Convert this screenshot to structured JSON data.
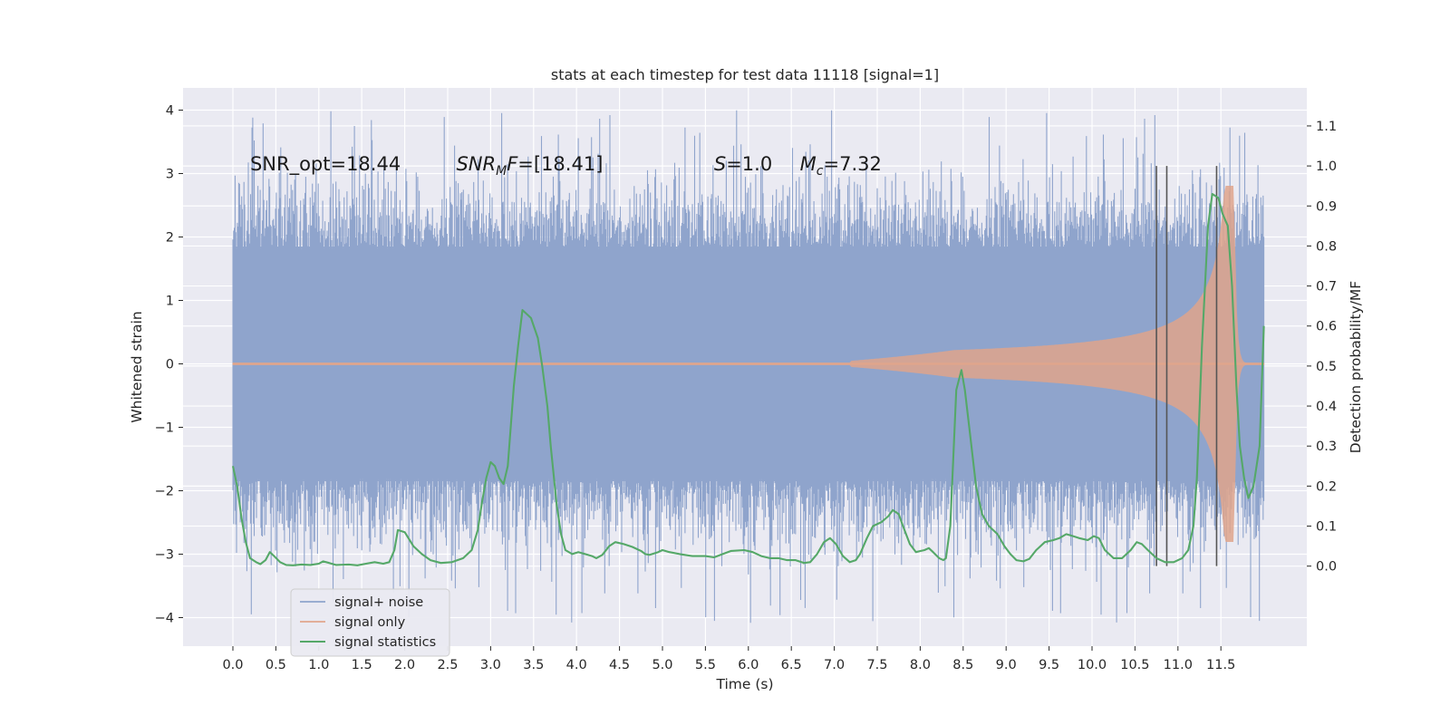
{
  "chart_data": {
    "type": "line",
    "title": "stats at each timestep for test data 11118 [signal=1]",
    "xlabel": "Time (s)",
    "ylabel": "Whitened strain",
    "y2label": "Detection probability/MF",
    "xlim": [
      -0.58,
      12.5
    ],
    "ylim": [
      -4.45,
      4.35
    ],
    "y2lim": [
      -0.2,
      1.195
    ],
    "xticks": [
      0.0,
      0.5,
      1.0,
      1.5,
      2.0,
      2.5,
      3.0,
      3.5,
      4.0,
      4.5,
      5.0,
      5.5,
      6.0,
      6.5,
      7.0,
      7.5,
      8.0,
      8.5,
      9.0,
      9.5,
      10.0,
      10.5,
      11.0,
      11.5
    ],
    "xtick_labels": [
      "0.0",
      "0.5",
      "1.0",
      "1.5",
      "2.0",
      "2.5",
      "3.0",
      "3.5",
      "4.0",
      "4.5",
      "5.0",
      "5.5",
      "6.0",
      "6.5",
      "7.0",
      "7.5",
      "8.0",
      "8.5",
      "9.0",
      "9.5",
      "10.0",
      "10.5",
      "11.0",
      "11.5"
    ],
    "yticks": [
      -4,
      -3,
      -2,
      -1,
      0,
      1,
      2,
      3,
      4
    ],
    "ytick_labels": [
      "−4",
      "−3",
      "−2",
      "−1",
      "0",
      "1",
      "2",
      "3",
      "4"
    ],
    "y2ticks": [
      0.0,
      0.1,
      0.2,
      0.3,
      0.4,
      0.5,
      0.6,
      0.7,
      0.8,
      0.9,
      1.0,
      1.1
    ],
    "y2tick_labels": [
      "0.0",
      "0.1",
      "0.2",
      "0.3",
      "0.4",
      "0.5",
      "0.6",
      "0.7",
      "0.8",
      "0.9",
      "1.0",
      "1.1"
    ],
    "grid": true,
    "legend_position": "lower-left",
    "annotations": [
      {
        "pre": "SNR_opt=18.44",
        "x": 0.2,
        "y": 3.15
      },
      {
        "pre": "SNR",
        "sub": "M",
        "post": "F=[18.41]",
        "italic": true,
        "x": 2.6,
        "y": 3.15
      },
      {
        "pre": "S",
        "post": "=1.0",
        "italic_pre": true,
        "x": 5.6,
        "y": 3.15
      },
      {
        "pre": "M",
        "sub": "c",
        "post": "=7.32",
        "italic_pre": true,
        "x": 6.6,
        "y": 3.15
      }
    ],
    "vlines": {
      "x": [
        10.75,
        10.87,
        11.45
      ],
      "y2_from": 0.0,
      "y2_to": 1.0,
      "color": "#555555"
    },
    "series": [
      {
        "name": "signal+ noise",
        "color": "#8fa4cc",
        "kind": "noise",
        "x_start": 0.0,
        "x_end": 12.0,
        "band_sigma": 1.0,
        "spike_max": 4.0,
        "spike_min": -4.1
      },
      {
        "name": "signal only",
        "color": "#e0a58c",
        "kind": "chirp",
        "x_start": 0.0,
        "x_end": 12.0,
        "onset": 7.2,
        "merger": 11.65,
        "amp_at_10": 0.35,
        "peak_amp": 2.8
      },
      {
        "name": "signal statistics",
        "color": "#55a868",
        "kind": "line",
        "axis": "y2",
        "points": [
          [
            0.0,
            0.25
          ],
          [
            0.05,
            0.2
          ],
          [
            0.1,
            0.12
          ],
          [
            0.15,
            0.06
          ],
          [
            0.2,
            0.02
          ],
          [
            0.27,
            0.01
          ],
          [
            0.32,
            0.005
          ],
          [
            0.38,
            0.015
          ],
          [
            0.43,
            0.035
          ],
          [
            0.48,
            0.025
          ],
          [
            0.55,
            0.01
          ],
          [
            0.62,
            0.003
          ],
          [
            0.7,
            0.002
          ],
          [
            0.8,
            0.004
          ],
          [
            0.9,
            0.003
          ],
          [
            1.0,
            0.006
          ],
          [
            1.05,
            0.012
          ],
          [
            1.12,
            0.008
          ],
          [
            1.2,
            0.003
          ],
          [
            1.35,
            0.004
          ],
          [
            1.45,
            0.002
          ],
          [
            1.55,
            0.006
          ],
          [
            1.65,
            0.01
          ],
          [
            1.75,
            0.006
          ],
          [
            1.82,
            0.01
          ],
          [
            1.88,
            0.04
          ],
          [
            1.92,
            0.09
          ],
          [
            2.0,
            0.085
          ],
          [
            2.1,
            0.05
          ],
          [
            2.2,
            0.03
          ],
          [
            2.3,
            0.015
          ],
          [
            2.42,
            0.008
          ],
          [
            2.55,
            0.01
          ],
          [
            2.68,
            0.02
          ],
          [
            2.78,
            0.04
          ],
          [
            2.85,
            0.09
          ],
          [
            2.9,
            0.16
          ],
          [
            2.95,
            0.22
          ],
          [
            3.0,
            0.26
          ],
          [
            3.05,
            0.25
          ],
          [
            3.1,
            0.22
          ],
          [
            3.15,
            0.205
          ],
          [
            3.2,
            0.25
          ],
          [
            3.27,
            0.45
          ],
          [
            3.32,
            0.55
          ],
          [
            3.37,
            0.64
          ],
          [
            3.42,
            0.63
          ],
          [
            3.47,
            0.62
          ],
          [
            3.55,
            0.57
          ],
          [
            3.6,
            0.5
          ],
          [
            3.66,
            0.4
          ],
          [
            3.7,
            0.3
          ],
          [
            3.77,
            0.15
          ],
          [
            3.82,
            0.08
          ],
          [
            3.87,
            0.04
          ],
          [
            3.95,
            0.03
          ],
          [
            4.02,
            0.035
          ],
          [
            4.1,
            0.03
          ],
          [
            4.18,
            0.025
          ],
          [
            4.23,
            0.02
          ],
          [
            4.3,
            0.028
          ],
          [
            4.38,
            0.05
          ],
          [
            4.45,
            0.06
          ],
          [
            4.55,
            0.055
          ],
          [
            4.65,
            0.048
          ],
          [
            4.75,
            0.038
          ],
          [
            4.8,
            0.03
          ],
          [
            4.85,
            0.028
          ],
          [
            4.95,
            0.035
          ],
          [
            5.0,
            0.04
          ],
          [
            5.08,
            0.035
          ],
          [
            5.2,
            0.03
          ],
          [
            5.35,
            0.025
          ],
          [
            5.5,
            0.025
          ],
          [
            5.6,
            0.022
          ],
          [
            5.7,
            0.03
          ],
          [
            5.8,
            0.038
          ],
          [
            5.95,
            0.04
          ],
          [
            6.05,
            0.035
          ],
          [
            6.15,
            0.025
          ],
          [
            6.25,
            0.02
          ],
          [
            6.35,
            0.02
          ],
          [
            6.45,
            0.015
          ],
          [
            6.55,
            0.015
          ],
          [
            6.65,
            0.008
          ],
          [
            6.72,
            0.01
          ],
          [
            6.8,
            0.03
          ],
          [
            6.88,
            0.06
          ],
          [
            6.95,
            0.07
          ],
          [
            7.02,
            0.055
          ],
          [
            7.1,
            0.025
          ],
          [
            7.18,
            0.01
          ],
          [
            7.25,
            0.015
          ],
          [
            7.3,
            0.03
          ],
          [
            7.38,
            0.07
          ],
          [
            7.45,
            0.1
          ],
          [
            7.55,
            0.11
          ],
          [
            7.63,
            0.125
          ],
          [
            7.68,
            0.14
          ],
          [
            7.75,
            0.13
          ],
          [
            7.8,
            0.1
          ],
          [
            7.88,
            0.055
          ],
          [
            7.95,
            0.035
          ],
          [
            8.05,
            0.04
          ],
          [
            8.1,
            0.045
          ],
          [
            8.15,
            0.035
          ],
          [
            8.22,
            0.02
          ],
          [
            8.27,
            0.015
          ],
          [
            8.3,
            0.02
          ],
          [
            8.35,
            0.1
          ],
          [
            8.42,
            0.44
          ],
          [
            8.48,
            0.49
          ],
          [
            8.52,
            0.44
          ],
          [
            8.58,
            0.33
          ],
          [
            8.65,
            0.2
          ],
          [
            8.72,
            0.13
          ],
          [
            8.8,
            0.1
          ],
          [
            8.9,
            0.08
          ],
          [
            8.98,
            0.05
          ],
          [
            9.05,
            0.03
          ],
          [
            9.12,
            0.015
          ],
          [
            9.2,
            0.012
          ],
          [
            9.27,
            0.018
          ],
          [
            9.35,
            0.04
          ],
          [
            9.45,
            0.06
          ],
          [
            9.55,
            0.065
          ],
          [
            9.62,
            0.07
          ],
          [
            9.7,
            0.08
          ],
          [
            9.78,
            0.075
          ],
          [
            9.85,
            0.07
          ],
          [
            9.95,
            0.065
          ],
          [
            10.02,
            0.075
          ],
          [
            10.08,
            0.07
          ],
          [
            10.15,
            0.04
          ],
          [
            10.25,
            0.02
          ],
          [
            10.35,
            0.02
          ],
          [
            10.45,
            0.04
          ],
          [
            10.52,
            0.06
          ],
          [
            10.58,
            0.055
          ],
          [
            10.65,
            0.04
          ],
          [
            10.75,
            0.02
          ],
          [
            10.85,
            0.01
          ],
          [
            10.95,
            0.01
          ],
          [
            11.05,
            0.02
          ],
          [
            11.12,
            0.04
          ],
          [
            11.18,
            0.1
          ],
          [
            11.22,
            0.22
          ],
          [
            11.28,
            0.55
          ],
          [
            11.35,
            0.85
          ],
          [
            11.4,
            0.93
          ],
          [
            11.47,
            0.92
          ],
          [
            11.52,
            0.88
          ],
          [
            11.58,
            0.85
          ],
          [
            11.63,
            0.7
          ],
          [
            11.68,
            0.45
          ],
          [
            11.72,
            0.3
          ],
          [
            11.77,
            0.22
          ],
          [
            11.82,
            0.17
          ],
          [
            11.88,
            0.2
          ],
          [
            11.95,
            0.3
          ],
          [
            12.0,
            0.6
          ]
        ]
      }
    ]
  }
}
